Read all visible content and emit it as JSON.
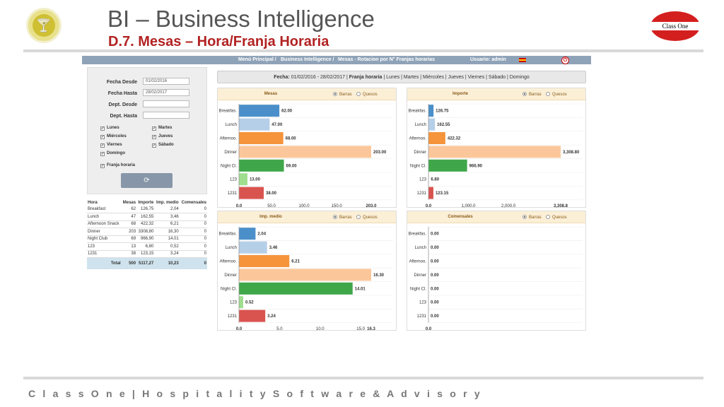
{
  "header": {
    "title": "BI – Business Intelligence",
    "subtitle": "D.7. Mesas – Hora/Franja Horaria",
    "right_logo_text": "Class One",
    "footer": "C l a s s O n e | H o s p i t a l i t y S o f t w a r e & A d v i s o r y"
  },
  "topbar": {
    "menu": "Menú Principal /",
    "section": "Business Intelligence /",
    "page": "Mesas - Rotacion por N° Franjas horarias",
    "user": "Usuario: admin"
  },
  "filters": {
    "fecha_desde_label": "Fecha Desde",
    "fecha_desde": "01/02/2016",
    "fecha_hasta_label": "Fecha Hasta",
    "fecha_hasta": "28/02/2017",
    "dept_desde_label": "Dept. Desde",
    "dept_hasta_label": "Dept. Hasta",
    "days": [
      "Lunes",
      "Martes",
      "Miércoles",
      "Jueves",
      "Viernes",
      "Sábado",
      "Domingo"
    ],
    "franja_label": "Franja horaria"
  },
  "table": {
    "headers": [
      "Hora",
      "Mesas",
      "Importe",
      "Imp. medio",
      "Comensales"
    ],
    "rows": [
      [
        "Breakfast",
        "62",
        "126,75",
        "2,04",
        "0"
      ],
      [
        "Lunch",
        "47",
        "162,55",
        "3,46",
        "0"
      ],
      [
        "Afternoon Snack",
        "68",
        "422,32",
        "6,21",
        "0"
      ],
      [
        "Dinner",
        "203",
        "3308,80",
        "16,30",
        "0"
      ],
      [
        "Night Club",
        "69",
        "966,90",
        "14,01",
        "0"
      ],
      [
        "123",
        "13",
        "6,80",
        "0,52",
        "0"
      ],
      [
        "1231",
        "38",
        "123,15",
        "3,24",
        "0"
      ]
    ],
    "total": [
      "Total",
      "500",
      "5117,27",
      "10,23",
      "0"
    ]
  },
  "datebar": {
    "label": "Fecha:",
    "range": "01/02/2016 - 28/02/2017",
    "franja": "Franja horaria",
    "days": "Lunes | Martes | Miércoles | Jueves | Viernes | Sábado | Domingo"
  },
  "radio": {
    "bars": "Barras",
    "pies": "Quesos"
  },
  "colors": [
    "#4a8fc9",
    "#b6cfe9",
    "#f5943b",
    "#fbc79a",
    "#3fa74a",
    "#9fde8e",
    "#d9534f"
  ],
  "chart_data": [
    {
      "type": "bar",
      "orientation": "horizontal",
      "title": "Mesas",
      "categories": [
        "Breakfas.",
        "Lunch",
        "Afternoo.",
        "Dinner",
        "Night Cl.",
        "123",
        "1231"
      ],
      "values": [
        62,
        47,
        68,
        203,
        69,
        13,
        38
      ],
      "labels": [
        "62.00",
        "47.00",
        "68.00",
        "203.00",
        "69.00",
        "13.00",
        "38.00"
      ],
      "xticks": [
        "0.0",
        "50.0",
        "100.0",
        "150.0",
        "203.0"
      ],
      "xtick_values": [
        0,
        50,
        100,
        150,
        203
      ],
      "xlim": [
        0,
        203
      ]
    },
    {
      "type": "bar",
      "orientation": "horizontal",
      "title": "Importe",
      "categories": [
        "Breakfas.",
        "Lunch",
        "Afternoo.",
        "Dinner",
        "Night Cl.",
        "123",
        "1231"
      ],
      "values": [
        126.75,
        162.55,
        422.32,
        3308.8,
        966.9,
        6.8,
        123.15
      ],
      "labels": [
        "126.75",
        "162.55",
        "422.32",
        "3,308.80",
        "966.90",
        "6.80",
        "123.15"
      ],
      "xticks": [
        "0.0",
        "1,000.0",
        "2,000.0",
        "3,308.8"
      ],
      "xtick_values": [
        0,
        1000,
        2000,
        3308.8
      ],
      "xlim": [
        0,
        3308.8
      ]
    },
    {
      "type": "bar",
      "orientation": "horizontal",
      "title": "Imp. medio",
      "categories": [
        "Breakfas.",
        "Lunch",
        "Afternoo.",
        "Dinner",
        "Night Cl.",
        "123",
        "1231"
      ],
      "values": [
        2.04,
        3.46,
        6.21,
        16.3,
        14.01,
        0.52,
        3.24
      ],
      "labels": [
        "2.04",
        "3.46",
        "6.21",
        "16.30",
        "14.01",
        "0.52",
        "3.24"
      ],
      "xticks": [
        "0.0",
        "5.0",
        "10.0",
        "15.0",
        "16.3"
      ],
      "xtick_values": [
        0,
        5,
        10,
        15,
        16.3
      ],
      "xlim": [
        0,
        16.3
      ]
    },
    {
      "type": "bar",
      "orientation": "horizontal",
      "title": "Comensales",
      "categories": [
        "Breakfas.",
        "Lunch",
        "Afternoo.",
        "Dinner",
        "Night Cl.",
        "123",
        "1231"
      ],
      "values": [
        0,
        0,
        0,
        0,
        0,
        0,
        0
      ],
      "labels": [
        "0.00",
        "0.00",
        "0.00",
        "0.00",
        "0.00",
        "0.00",
        "0.00"
      ],
      "xticks": [
        "0.0"
      ],
      "xtick_values": [
        0
      ],
      "xlim": [
        0,
        1
      ]
    }
  ]
}
